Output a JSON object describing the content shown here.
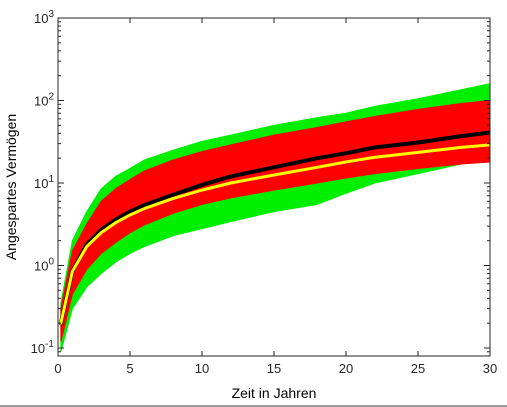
{
  "chart_data": {
    "type": "line",
    "title": "",
    "xlabel": "Zeit in Jahren",
    "ylabel": "Angespartes Vermögen",
    "xlim": [
      0,
      30
    ],
    "ylim": [
      0.08,
      1000
    ],
    "yscale": "log",
    "grid": false,
    "x_ticks": [
      0,
      5,
      10,
      15,
      20,
      25,
      30
    ],
    "x_tick_labels": [
      "0",
      "5",
      "10",
      "15",
      "20",
      "25",
      "30"
    ],
    "y_ticks": [
      0.1,
      1,
      10,
      100,
      1000
    ],
    "y_tick_labels": [
      {
        "base": "10",
        "exp": "-1"
      },
      {
        "base": "10",
        "exp": "0"
      },
      {
        "base": "10",
        "exp": "1"
      },
      {
        "base": "10",
        "exp": "2"
      },
      {
        "base": "10",
        "exp": "3"
      }
    ],
    "x": [
      0.2,
      1,
      2,
      3,
      4,
      5,
      6,
      8,
      10,
      12,
      15,
      18,
      20,
      22,
      25,
      28,
      30
    ],
    "series": [
      {
        "color": "#00ee00",
        "role": "simulated paths band upper",
        "values": [
          0.35,
          2.0,
          4.5,
          8.5,
          12,
          15,
          19,
          25,
          32,
          38,
          50,
          62,
          70,
          85,
          105,
          135,
          160
        ]
      },
      {
        "color": "#00ee00",
        "role": "simulated paths band lower",
        "values": [
          0.09,
          0.3,
          0.55,
          0.8,
          1.1,
          1.4,
          1.7,
          2.3,
          2.8,
          3.4,
          4.5,
          5.5,
          7.5,
          10,
          13,
          17,
          20
        ]
      },
      {
        "color": "#ff0000",
        "role": "simulated paths inner band upper",
        "values": [
          0.3,
          1.5,
          3.2,
          6.0,
          8.5,
          11,
          14,
          19,
          24,
          29,
          38,
          47,
          55,
          64,
          78,
          92,
          100
        ]
      },
      {
        "color": "#ff0000",
        "role": "simulated paths inner band lower",
        "values": [
          0.12,
          0.45,
          0.9,
          1.4,
          1.9,
          2.5,
          3.1,
          4.3,
          5.5,
          6.6,
          8.2,
          10,
          11.5,
          13,
          15,
          17,
          18
        ]
      },
      {
        "color": "#000000",
        "role": "mean path",
        "values": [
          0.2,
          0.85,
          1.8,
          2.7,
          3.6,
          4.5,
          5.4,
          7.2,
          9.5,
          12,
          15.5,
          20,
          23,
          27,
          31,
          37,
          41
        ]
      },
      {
        "color": "#ffff00",
        "role": "deterministic path",
        "values": [
          0.2,
          0.85,
          1.7,
          2.5,
          3.3,
          4.1,
          4.9,
          6.5,
          8.2,
          10,
          12.5,
          15.5,
          18,
          20.5,
          23.5,
          27,
          29
        ]
      }
    ]
  }
}
